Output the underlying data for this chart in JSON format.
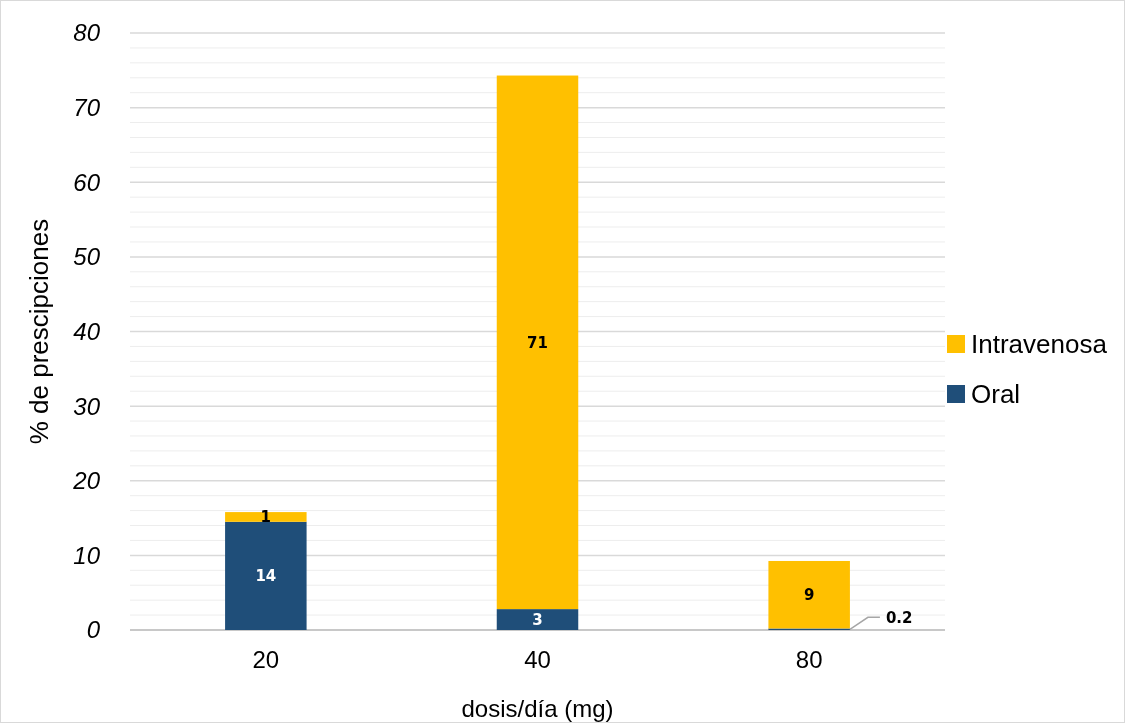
{
  "chart_data": {
    "type": "bar",
    "stacked": true,
    "xlabel": "dosis/día (mg)",
    "ylabel": "% de prescipciones",
    "categories": [
      "20",
      "40",
      "80"
    ],
    "series": [
      {
        "name": "Oral",
        "color": "#1f4e79",
        "values": [
          14.5,
          2.8,
          0.2
        ],
        "value_labels": [
          "14",
          "3",
          "0.2"
        ]
      },
      {
        "name": "Intravenosa",
        "color": "#ffc000",
        "values": [
          1.3,
          71.5,
          9.05
        ],
        "value_labels": [
          "1",
          "71",
          "9"
        ]
      }
    ],
    "ylim": [
      0,
      80
    ],
    "yticks": [
      0,
      {
        "value": 2,
        "label": null
      },
      {
        "value": 4,
        "label": null
      },
      {
        "value": 6,
        "label": null
      },
      {
        "value": 8,
        "label": null
      },
      10,
      {
        "value": 12,
        "label": null
      },
      {
        "value": 14,
        "label": null
      },
      {
        "value": 16,
        "label": null
      },
      {
        "value": 18,
        "label": null
      },
      20,
      {
        "value": 22,
        "label": null
      },
      {
        "value": 24,
        "label": null
      },
      {
        "value": 26,
        "label": null
      },
      {
        "value": 28,
        "label": null
      },
      30,
      {
        "value": 32,
        "label": null
      },
      {
        "value": 34,
        "label": null
      },
      {
        "value": 36,
        "label": null
      },
      {
        "value": 38,
        "label": null
      },
      40,
      {
        "value": 42,
        "label": null
      },
      {
        "value": 44,
        "label": null
      },
      {
        "value": 46,
        "label": null
      },
      {
        "value": 48,
        "label": null
      },
      50,
      {
        "value": 52,
        "label": null
      },
      {
        "value": 54,
        "label": null
      },
      {
        "value": 56,
        "label": null
      },
      {
        "value": 58,
        "label": null
      },
      60,
      {
        "value": 62,
        "label": null
      },
      {
        "value": 64,
        "label": null
      },
      {
        "value": 66,
        "label": null
      },
      {
        "value": 68,
        "label": null
      },
      70,
      {
        "value": 72,
        "label": null
      },
      {
        "value": 74,
        "label": null
      },
      {
        "value": 76,
        "label": null
      },
      {
        "value": 78,
        "label": null
      },
      80
    ],
    "grid": "y",
    "legend": "right"
  }
}
